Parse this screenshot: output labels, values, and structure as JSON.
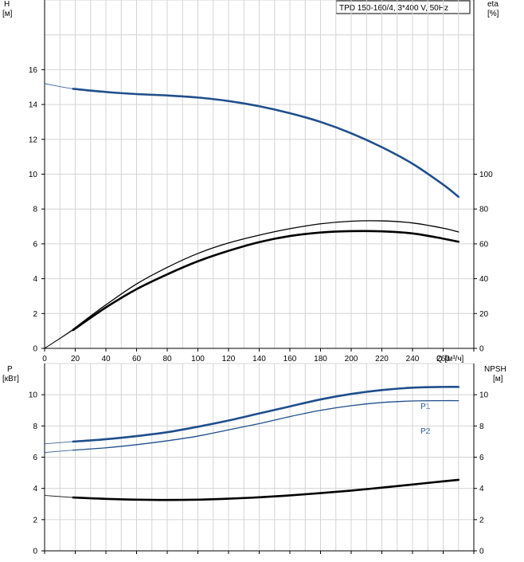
{
  "header": {
    "title": "TPD 150-160/4, 3*400 V, 50Hz"
  },
  "chart_data": [
    {
      "type": "line",
      "panel": "top",
      "x_axis": {
        "label": "Q [м³/ч]",
        "range": [
          0,
          280
        ],
        "ticks": [
          "0",
          "20",
          "40",
          "60",
          "80",
          "100",
          "120",
          "140",
          "160",
          "180",
          "200",
          "220",
          "240",
          "260"
        ]
      },
      "y_axis_left": {
        "label_name": "H",
        "label_unit": "[м]",
        "range": [
          0,
          20
        ],
        "ticks": [
          "0",
          "2",
          "4",
          "6",
          "8",
          "10",
          "12",
          "14",
          "16"
        ]
      },
      "y_axis_right": {
        "label_name": "eta",
        "label_unit": "[%]",
        "range": [
          0,
          200
        ],
        "ticks": [
          "0",
          "20",
          "40",
          "60",
          "80",
          "100"
        ]
      },
      "grid": true,
      "series": [
        {
          "id": "H",
          "axis": "left",
          "color": "#1f4e8c",
          "style": "thick",
          "extension_from": 0,
          "x": [
            0,
            18.6,
            40,
            60,
            80,
            100,
            120,
            140,
            160,
            180,
            200,
            220,
            240,
            260,
            270
          ],
          "y": [
            15.2,
            14.9,
            14.72,
            14.6,
            14.52,
            14.4,
            14.2,
            13.9,
            13.5,
            13.0,
            12.35,
            11.55,
            10.6,
            9.4,
            8.7
          ]
        },
        {
          "id": "eta_thin",
          "axis": "right",
          "color": "#000000",
          "style": "thin",
          "extension_from": 0,
          "x": [
            0,
            18.6,
            40,
            60,
            80,
            100,
            120,
            140,
            160,
            180,
            200,
            220,
            240,
            260,
            270
          ],
          "y": [
            0,
            11,
            25,
            37,
            46.5,
            54.5,
            60.5,
            65,
            68.7,
            71.5,
            73,
            73.2,
            72,
            69,
            66.8
          ]
        },
        {
          "id": "eta_thick",
          "axis": "right",
          "color": "#000000",
          "style": "thick",
          "extension_from": 0,
          "x": [
            0,
            18.6,
            40,
            60,
            80,
            100,
            120,
            140,
            160,
            180,
            200,
            220,
            240,
            260,
            270
          ],
          "y": [
            0,
            10.5,
            23.5,
            34,
            42.5,
            50,
            56,
            61,
            64.5,
            66.5,
            67.3,
            67.2,
            66,
            63,
            61.2
          ]
        }
      ]
    },
    {
      "type": "line",
      "panel": "bottom",
      "x_axis": {
        "label": "",
        "range": [
          0,
          280
        ]
      },
      "y_axis_left": {
        "label_name": "P",
        "label_unit": "[кВт]",
        "range": [
          0,
          12
        ],
        "ticks": [
          "0",
          "2",
          "4",
          "6",
          "8",
          "10"
        ]
      },
      "y_axis_right": {
        "label_name": "NPSH",
        "label_unit": "[м]",
        "range": [
          0,
          12
        ],
        "ticks": [
          "0",
          "2",
          "4",
          "6",
          "8",
          "10"
        ]
      },
      "grid": true,
      "series": [
        {
          "id": "P1",
          "name": "P1",
          "axis": "left",
          "color": "#1f4e8c",
          "style": "thick",
          "extension_from": 0,
          "x": [
            0,
            18.6,
            40,
            60,
            80,
            100,
            120,
            140,
            160,
            180,
            200,
            220,
            240,
            260,
            270
          ],
          "y": [
            6.85,
            7.0,
            7.15,
            7.35,
            7.6,
            7.95,
            8.35,
            8.8,
            9.25,
            9.7,
            10.05,
            10.3,
            10.45,
            10.5,
            10.5
          ]
        },
        {
          "id": "P2",
          "name": "P2",
          "axis": "left",
          "color": "#1f4e8c",
          "style": "thin",
          "extension_from": 0,
          "x": [
            0,
            18.6,
            40,
            60,
            80,
            100,
            120,
            140,
            160,
            180,
            200,
            220,
            240,
            260,
            270
          ],
          "y": [
            6.3,
            6.45,
            6.6,
            6.8,
            7.05,
            7.35,
            7.75,
            8.15,
            8.6,
            9.0,
            9.3,
            9.5,
            9.6,
            9.62,
            9.62
          ]
        },
        {
          "id": "NPSH",
          "axis": "right",
          "color": "#000000",
          "style": "thick",
          "extension_from": 0,
          "x": [
            0,
            18.6,
            40,
            60,
            80,
            100,
            120,
            140,
            160,
            180,
            200,
            220,
            240,
            260,
            270
          ],
          "y": [
            3.55,
            3.42,
            3.33,
            3.28,
            3.26,
            3.28,
            3.34,
            3.43,
            3.55,
            3.7,
            3.86,
            4.05,
            4.25,
            4.45,
            4.55
          ]
        }
      ]
    }
  ]
}
